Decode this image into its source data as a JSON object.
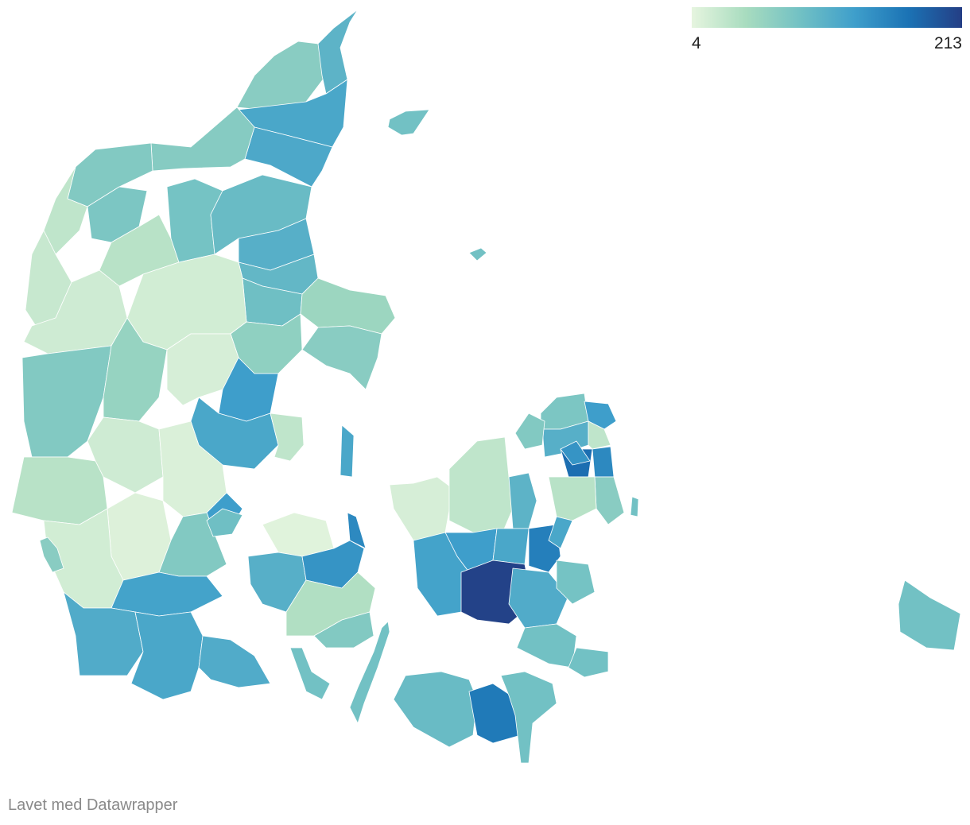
{
  "legend": {
    "min_label": "4",
    "max_label": "213",
    "min_value": 4,
    "max_value": 213,
    "colors": [
      "#e6f5df",
      "#a8dcbf",
      "#72c1c4",
      "#3f9fcb",
      "#1b73b5",
      "#243e85"
    ]
  },
  "footer": {
    "credit": "Lavet med Datawrapper"
  },
  "map": {
    "type": "choropleth",
    "regions": [
      {
        "value": 70
      },
      {
        "value": 105
      },
      {
        "value": 120
      },
      {
        "value": 118
      },
      {
        "value": 72
      },
      {
        "value": 75
      },
      {
        "value": 30
      },
      {
        "value": 80
      },
      {
        "value": 35
      },
      {
        "value": 25
      },
      {
        "value": 85
      },
      {
        "value": 95
      },
      {
        "value": 110
      },
      {
        "value": 100
      },
      {
        "value": 90
      },
      {
        "value": 55
      },
      {
        "value": 70
      },
      {
        "value": 20
      },
      {
        "value": 18
      },
      {
        "value": 65
      },
      {
        "value": 75
      },
      {
        "value": 60
      },
      {
        "value": 15
      },
      {
        "value": 130
      },
      {
        "value": 120
      },
      {
        "value": 30
      },
      {
        "value": 20
      },
      {
        "value": 35
      },
      {
        "value": 12
      },
      {
        "value": 10
      },
      {
        "value": 130
      },
      {
        "value": 75
      },
      {
        "value": 18
      },
      {
        "value": 125
      },
      {
        "value": 115
      },
      {
        "value": 120
      },
      {
        "value": 115
      },
      {
        "value": 70
      },
      {
        "value": 8
      },
      {
        "value": 110
      },
      {
        "value": 140
      },
      {
        "value": 40
      },
      {
        "value": 75
      },
      {
        "value": 150
      },
      {
        "value": 90
      },
      {
        "value": 120
      },
      {
        "value": 80
      },
      {
        "value": 130
      },
      {
        "value": 110
      },
      {
        "value": 30
      },
      {
        "value": 75
      },
      {
        "value": 15
      },
      {
        "value": 30
      },
      {
        "value": 105
      },
      {
        "value": 130
      },
      {
        "value": 125
      },
      {
        "value": 120
      },
      {
        "value": 210
      },
      {
        "value": 160
      },
      {
        "value": 175
      },
      {
        "value": 140
      },
      {
        "value": 150
      },
      {
        "value": 70
      },
      {
        "value": 35
      },
      {
        "value": 120
      },
      {
        "value": 115
      },
      {
        "value": 85
      },
      {
        "value": 95
      },
      {
        "value": 165
      }
    ]
  }
}
